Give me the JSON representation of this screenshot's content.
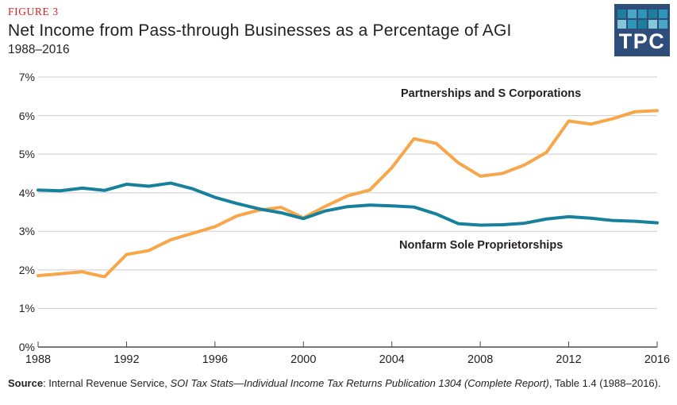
{
  "figure_label": "FIGURE 3",
  "title": "Net Income from Pass-through Businesses as a Percentage of AGI",
  "subtitle": "1988–2016",
  "logo": {
    "text": "TPC",
    "bg_color": "#2E4D7B",
    "square_colors": [
      [
        "#1E7F9C",
        "#4AA7C6",
        "#2D96B8",
        "#1E7F9C",
        "#2D96B8"
      ],
      [
        "#85C6DB",
        "#2D96B8",
        "#1E7F9C",
        "#85C6DB",
        "#4AA7C6"
      ]
    ]
  },
  "source": {
    "label": "Source",
    "after_label": ": Internal Revenue Service, ",
    "italic_part": "SOI Tax Stats—Individual Income Tax Returns Publication 1304 (Complete Report)",
    "tail": ", Table 1.4 (1988–2016)."
  },
  "chart_data": {
    "type": "line",
    "title": "Net Income from Pass-through Businesses as a Percentage of AGI",
    "subtitle": "1988–2016",
    "xlabel": "",
    "ylabel": "",
    "x_range": [
      1988,
      2016
    ],
    "ylim": [
      0,
      7
    ],
    "grid": "horizontal",
    "grid_color": "#cdcdcd",
    "axis_color": "#4a4a4c",
    "legend_position": "inline-labels",
    "x_ticks": [
      1988,
      1992,
      1996,
      2000,
      2004,
      2008,
      2012,
      2016
    ],
    "y_ticks": [
      {
        "label": "0%",
        "value": 0
      },
      {
        "label": "1%",
        "value": 1
      },
      {
        "label": "2%",
        "value": 2
      },
      {
        "label": "3%",
        "value": 3
      },
      {
        "label": "4%",
        "value": 4
      },
      {
        "label": "5%",
        "value": 5
      },
      {
        "label": "6%",
        "value": 6
      },
      {
        "label": "7%",
        "value": 7
      }
    ],
    "x": [
      1988,
      1989,
      1990,
      1991,
      1992,
      1993,
      1994,
      1995,
      1996,
      1997,
      1998,
      1999,
      2000,
      2001,
      2002,
      2003,
      2004,
      2005,
      2006,
      2007,
      2008,
      2009,
      2010,
      2011,
      2012,
      2013,
      2014,
      2015,
      2016
    ],
    "series": [
      {
        "name": "Partnerships and S Corporations",
        "color": "#F8A64A",
        "values": [
          1.85,
          1.9,
          1.95,
          1.82,
          2.4,
          2.5,
          2.78,
          2.95,
          3.12,
          3.4,
          3.55,
          3.62,
          3.35,
          3.65,
          3.92,
          4.07,
          4.65,
          5.4,
          5.28,
          4.78,
          4.43,
          4.5,
          4.72,
          5.05,
          5.86,
          5.78,
          5.92,
          6.1,
          6.13
        ]
      },
      {
        "name": "Nonfarm Sole Proprietorships",
        "color": "#17809D",
        "values": [
          4.07,
          4.05,
          4.12,
          4.06,
          4.22,
          4.17,
          4.25,
          4.1,
          3.88,
          3.72,
          3.58,
          3.48,
          3.33,
          3.53,
          3.64,
          3.68,
          3.66,
          3.63,
          3.45,
          3.2,
          3.16,
          3.17,
          3.21,
          3.32,
          3.38,
          3.34,
          3.28,
          3.26,
          3.22
        ]
      }
    ]
  }
}
